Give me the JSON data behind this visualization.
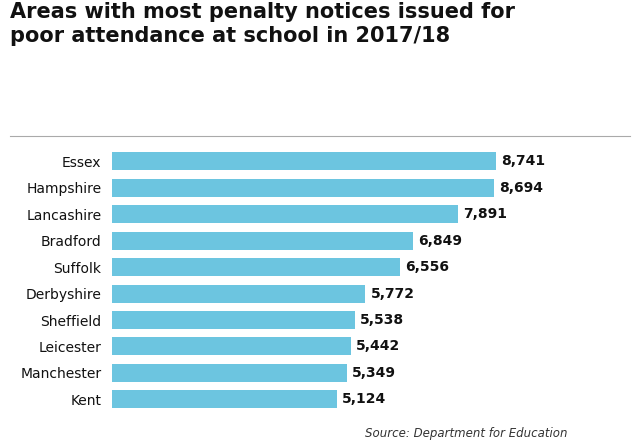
{
  "title_line1": "Areas with most penalty notices issued for",
  "title_line2": "poor attendance at school in 2017/18",
  "categories": [
    "Kent",
    "Manchester",
    "Leicester",
    "Sheffield",
    "Derbyshire",
    "Suffolk",
    "Bradford",
    "Lancashire",
    "Hampshire",
    "Essex"
  ],
  "values": [
    5124,
    5349,
    5442,
    5538,
    5772,
    6556,
    6849,
    7891,
    8694,
    8741
  ],
  "labels": [
    "5,124",
    "5,349",
    "5,442",
    "5,538",
    "5,772",
    "6,556",
    "6,849",
    "7,891",
    "8,694",
    "8,741"
  ],
  "bar_color": "#6CC5E0",
  "background_color": "#ffffff",
  "title_fontsize": 15,
  "label_fontsize": 10,
  "tick_fontsize": 10,
  "source_text": "Source: Department for Education",
  "pa_bg_color": "#cc0000",
  "pa_text_color": "#ffffff",
  "xlim": [
    0,
    10500
  ]
}
